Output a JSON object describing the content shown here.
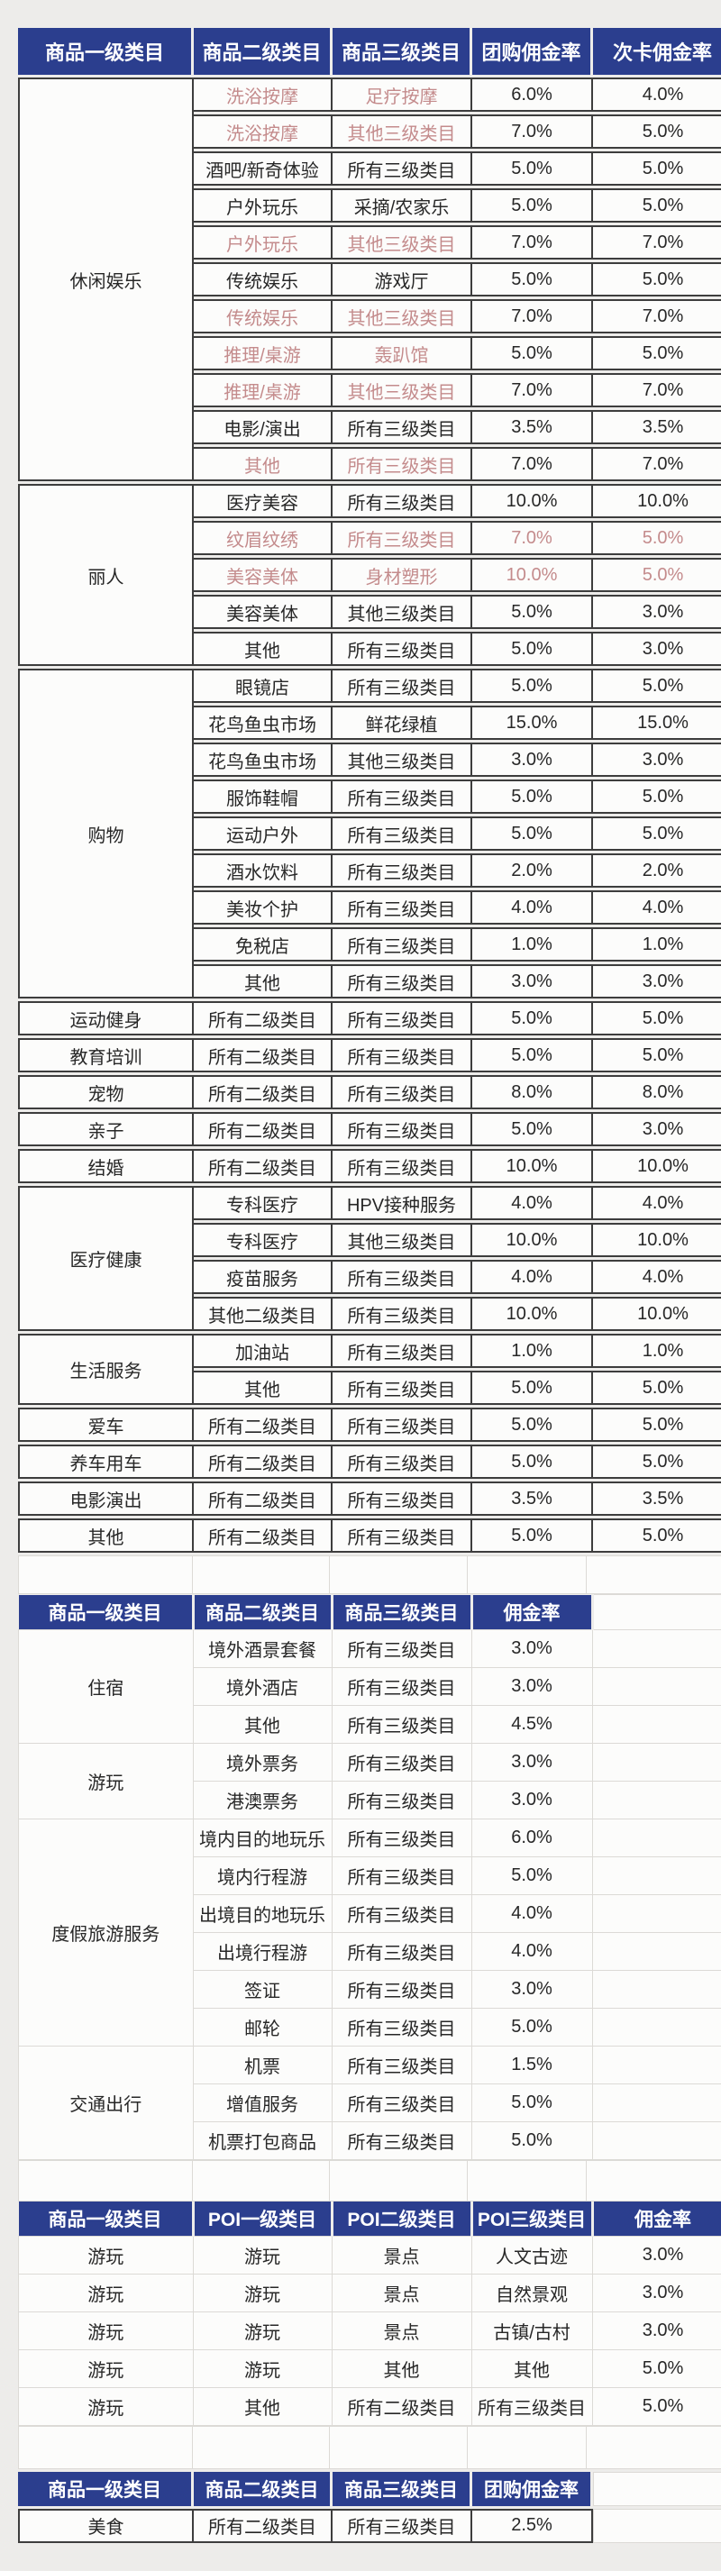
{
  "colors": {
    "page_bg": "#edecea",
    "header_bg": "#2b3e8e",
    "header_text": "#ffffff",
    "cell_bg": "#fcfcfb",
    "dark_border": "#3d3d3d",
    "light_border": "#dcdad6",
    "body_text": "#272727",
    "pink_text": "#c48b8c"
  },
  "blocks": [
    {
      "type": "table",
      "name": "groupbuy-card-commission-table",
      "style": "bordered",
      "tall_header": true,
      "ghost_w": 0,
      "columns": [
        {
          "label": "商品一级类目",
          "w": 188
        },
        {
          "label": "商品二级类目",
          "w": 147
        },
        {
          "label": "商品三级类目",
          "w": 148
        },
        {
          "label": "团购佣金率",
          "w": 127
        },
        {
          "label": "次卡佣金率",
          "w": 150
        }
      ],
      "rows": [
        [
          {
            "t": "休闲娱乐",
            "rs": 11
          },
          {
            "t": "洗浴按摩",
            "pink": true
          },
          {
            "t": "足疗按摩",
            "pink": true
          },
          {
            "t": "6.0%"
          },
          {
            "t": "4.0%"
          }
        ],
        [
          {
            "t": "洗浴按摩",
            "pink": true
          },
          {
            "t": "其他三级类目",
            "pink": true
          },
          {
            "t": "7.0%"
          },
          {
            "t": "5.0%"
          }
        ],
        [
          {
            "t": "酒吧/新奇体验"
          },
          {
            "t": "所有三级类目"
          },
          {
            "t": "5.0%"
          },
          {
            "t": "5.0%"
          }
        ],
        [
          {
            "t": "户外玩乐"
          },
          {
            "t": "采摘/农家乐"
          },
          {
            "t": "5.0%"
          },
          {
            "t": "5.0%"
          }
        ],
        [
          {
            "t": "户外玩乐",
            "pink": true
          },
          {
            "t": "其他三级类目",
            "pink": true
          },
          {
            "t": "7.0%"
          },
          {
            "t": "7.0%"
          }
        ],
        [
          {
            "t": "传统娱乐"
          },
          {
            "t": "游戏厅"
          },
          {
            "t": "5.0%"
          },
          {
            "t": "5.0%"
          }
        ],
        [
          {
            "t": "传统娱乐",
            "pink": true
          },
          {
            "t": "其他三级类目",
            "pink": true
          },
          {
            "t": "7.0%"
          },
          {
            "t": "7.0%"
          }
        ],
        [
          {
            "t": "推理/桌游",
            "pink": true
          },
          {
            "t": "轰趴馆",
            "pink": true
          },
          {
            "t": "5.0%"
          },
          {
            "t": "5.0%"
          }
        ],
        [
          {
            "t": "推理/桌游",
            "pink": true
          },
          {
            "t": "其他三级类目",
            "pink": true
          },
          {
            "t": "7.0%"
          },
          {
            "t": "7.0%"
          }
        ],
        [
          {
            "t": "电影/演出"
          },
          {
            "t": "所有三级类目"
          },
          {
            "t": "3.5%"
          },
          {
            "t": "3.5%"
          }
        ],
        [
          {
            "t": "其他",
            "pink": true
          },
          {
            "t": "所有三级类目",
            "pink": true
          },
          {
            "t": "7.0%"
          },
          {
            "t": "7.0%"
          }
        ],
        [
          {
            "t": "丽人",
            "rs": 5
          },
          {
            "t": "医疗美容"
          },
          {
            "t": "所有三级类目"
          },
          {
            "t": "10.0%"
          },
          {
            "t": "10.0%"
          }
        ],
        [
          {
            "t": "纹眉纹绣",
            "pink": true
          },
          {
            "t": "所有三级类目",
            "pink": true
          },
          {
            "t": "7.0%",
            "pink": true
          },
          {
            "t": "5.0%",
            "pink": true
          }
        ],
        [
          {
            "t": "美容美体",
            "pink": true
          },
          {
            "t": "身材塑形",
            "pink": true
          },
          {
            "t": "10.0%",
            "pink": true
          },
          {
            "t": "5.0%",
            "pink": true
          }
        ],
        [
          {
            "t": "美容美体"
          },
          {
            "t": "其他三级类目"
          },
          {
            "t": "5.0%"
          },
          {
            "t": "3.0%"
          }
        ],
        [
          {
            "t": "其他"
          },
          {
            "t": "所有三级类目"
          },
          {
            "t": "5.0%"
          },
          {
            "t": "3.0%"
          }
        ],
        [
          {
            "t": "购物",
            "rs": 9
          },
          {
            "t": "眼镜店"
          },
          {
            "t": "所有三级类目"
          },
          {
            "t": "5.0%"
          },
          {
            "t": "5.0%"
          }
        ],
        [
          {
            "t": "花鸟鱼虫市场"
          },
          {
            "t": "鲜花绿植"
          },
          {
            "t": "15.0%"
          },
          {
            "t": "15.0%"
          }
        ],
        [
          {
            "t": "花鸟鱼虫市场"
          },
          {
            "t": "其他三级类目"
          },
          {
            "t": "3.0%"
          },
          {
            "t": "3.0%"
          }
        ],
        [
          {
            "t": "服饰鞋帽"
          },
          {
            "t": "所有三级类目"
          },
          {
            "t": "5.0%"
          },
          {
            "t": "5.0%"
          }
        ],
        [
          {
            "t": "运动户外"
          },
          {
            "t": "所有三级类目"
          },
          {
            "t": "5.0%"
          },
          {
            "t": "5.0%"
          }
        ],
        [
          {
            "t": "酒水饮料"
          },
          {
            "t": "所有三级类目"
          },
          {
            "t": "2.0%"
          },
          {
            "t": "2.0%"
          }
        ],
        [
          {
            "t": "美妆个护"
          },
          {
            "t": "所有三级类目"
          },
          {
            "t": "4.0%"
          },
          {
            "t": "4.0%"
          }
        ],
        [
          {
            "t": "免税店"
          },
          {
            "t": "所有三级类目"
          },
          {
            "t": "1.0%"
          },
          {
            "t": "1.0%"
          }
        ],
        [
          {
            "t": "其他"
          },
          {
            "t": "所有三级类目"
          },
          {
            "t": "3.0%"
          },
          {
            "t": "3.0%"
          }
        ],
        [
          {
            "t": "运动健身"
          },
          {
            "t": "所有二级类目"
          },
          {
            "t": "所有三级类目"
          },
          {
            "t": "5.0%"
          },
          {
            "t": "5.0%"
          }
        ],
        [
          {
            "t": "教育培训"
          },
          {
            "t": "所有二级类目"
          },
          {
            "t": "所有三级类目"
          },
          {
            "t": "5.0%"
          },
          {
            "t": "5.0%"
          }
        ],
        [
          {
            "t": "宠物"
          },
          {
            "t": "所有二级类目"
          },
          {
            "t": "所有三级类目"
          },
          {
            "t": "8.0%"
          },
          {
            "t": "8.0%"
          }
        ],
        [
          {
            "t": "亲子"
          },
          {
            "t": "所有二级类目"
          },
          {
            "t": "所有三级类目"
          },
          {
            "t": "5.0%"
          },
          {
            "t": "3.0%"
          }
        ],
        [
          {
            "t": "结婚"
          },
          {
            "t": "所有二级类目"
          },
          {
            "t": "所有三级类目"
          },
          {
            "t": "10.0%"
          },
          {
            "t": "10.0%"
          }
        ],
        [
          {
            "t": "医疗健康",
            "rs": 4
          },
          {
            "t": "专科医疗"
          },
          {
            "t": "HPV接种服务"
          },
          {
            "t": "4.0%"
          },
          {
            "t": "4.0%"
          }
        ],
        [
          {
            "t": "专科医疗"
          },
          {
            "t": "其他三级类目"
          },
          {
            "t": "10.0%"
          },
          {
            "t": "10.0%"
          }
        ],
        [
          {
            "t": "疫苗服务"
          },
          {
            "t": "所有三级类目"
          },
          {
            "t": "4.0%"
          },
          {
            "t": "4.0%"
          }
        ],
        [
          {
            "t": "其他二级类目"
          },
          {
            "t": "所有三级类目"
          },
          {
            "t": "10.0%"
          },
          {
            "t": "10.0%"
          }
        ],
        [
          {
            "t": "生活服务",
            "rs": 2
          },
          {
            "t": "加油站"
          },
          {
            "t": "所有三级类目"
          },
          {
            "t": "1.0%"
          },
          {
            "t": "1.0%"
          }
        ],
        [
          {
            "t": "其他"
          },
          {
            "t": "所有三级类目"
          },
          {
            "t": "5.0%"
          },
          {
            "t": "5.0%"
          }
        ],
        [
          {
            "t": "爱车"
          },
          {
            "t": "所有二级类目"
          },
          {
            "t": "所有三级类目"
          },
          {
            "t": "5.0%"
          },
          {
            "t": "5.0%"
          }
        ],
        [
          {
            "t": "养车用车"
          },
          {
            "t": "所有二级类目"
          },
          {
            "t": "所有三级类目"
          },
          {
            "t": "5.0%"
          },
          {
            "t": "5.0%"
          }
        ],
        [
          {
            "t": "电影演出"
          },
          {
            "t": "所有二级类目"
          },
          {
            "t": "所有三级类目"
          },
          {
            "t": "3.5%"
          },
          {
            "t": "3.5%"
          }
        ],
        [
          {
            "t": "其他"
          },
          {
            "t": "所有二级类目"
          },
          {
            "t": "所有三级类目"
          },
          {
            "t": "5.0%"
          },
          {
            "t": "5.0%"
          }
        ]
      ]
    },
    {
      "type": "spacer",
      "h": 41,
      "cols": [
        188,
        147,
        148,
        127,
        150
      ]
    },
    {
      "type": "table",
      "name": "travel-commission-table",
      "style": "plain",
      "tall_header": false,
      "ghost_w": 150,
      "columns": [
        {
          "label": "商品一级类目",
          "w": 188
        },
        {
          "label": "商品二级类目",
          "w": 147
        },
        {
          "label": "商品三级类目",
          "w": 148
        },
        {
          "label": "佣金率",
          "w": 127
        }
      ],
      "rows": [
        [
          {
            "t": "住宿",
            "rs": 3
          },
          {
            "t": "境外酒景套餐"
          },
          {
            "t": "所有三级类目"
          },
          {
            "t": "3.0%"
          }
        ],
        [
          {
            "t": "境外酒店"
          },
          {
            "t": "所有三级类目"
          },
          {
            "t": "3.0%"
          }
        ],
        [
          {
            "t": "其他"
          },
          {
            "t": "所有三级类目"
          },
          {
            "t": "4.5%"
          }
        ],
        [
          {
            "t": "游玩",
            "rs": 2
          },
          {
            "t": "境外票务"
          },
          {
            "t": "所有三级类目"
          },
          {
            "t": "3.0%"
          }
        ],
        [
          {
            "t": "港澳票务"
          },
          {
            "t": "所有三级类目"
          },
          {
            "t": "3.0%"
          }
        ],
        [
          {
            "t": "度假旅游服务",
            "rs": 6
          },
          {
            "t": "境内目的地玩乐"
          },
          {
            "t": "所有三级类目"
          },
          {
            "t": "6.0%"
          }
        ],
        [
          {
            "t": "境内行程游"
          },
          {
            "t": "所有三级类目"
          },
          {
            "t": "5.0%"
          }
        ],
        [
          {
            "t": "出境目的地玩乐"
          },
          {
            "t": "所有三级类目"
          },
          {
            "t": "4.0%"
          }
        ],
        [
          {
            "t": "出境行程游"
          },
          {
            "t": "所有三级类目"
          },
          {
            "t": "4.0%"
          }
        ],
        [
          {
            "t": "签证"
          },
          {
            "t": "所有三级类目"
          },
          {
            "t": "3.0%"
          }
        ],
        [
          {
            "t": "邮轮"
          },
          {
            "t": "所有三级类目"
          },
          {
            "t": "5.0%"
          }
        ],
        [
          {
            "t": "交通出行",
            "rs": 3
          },
          {
            "t": "机票"
          },
          {
            "t": "所有三级类目"
          },
          {
            "t": "1.5%"
          }
        ],
        [
          {
            "t": "增值服务"
          },
          {
            "t": "所有三级类目"
          },
          {
            "t": "5.0%"
          }
        ],
        [
          {
            "t": "机票打包商品"
          },
          {
            "t": "所有三级类目"
          },
          {
            "t": "5.0%"
          }
        ]
      ]
    },
    {
      "type": "spacer",
      "h": 44,
      "cols": [
        188,
        147,
        148,
        127,
        150
      ]
    },
    {
      "type": "table",
      "name": "poi-commission-table",
      "style": "plain",
      "tall_header": false,
      "ghost_w": 0,
      "columns": [
        {
          "label": "商品一级类目",
          "w": 188
        },
        {
          "label": "POI一级类目",
          "w": 147
        },
        {
          "label": "POI二级类目",
          "w": 148
        },
        {
          "label": "POI三级类目",
          "w": 127
        },
        {
          "label": "佣金率",
          "w": 150
        }
      ],
      "rows": [
        [
          {
            "t": "游玩"
          },
          {
            "t": "游玩"
          },
          {
            "t": "景点"
          },
          {
            "t": "人文古迹"
          },
          {
            "t": "3.0%"
          }
        ],
        [
          {
            "t": "游玩"
          },
          {
            "t": "游玩"
          },
          {
            "t": "景点"
          },
          {
            "t": "自然景观"
          },
          {
            "t": "3.0%"
          }
        ],
        [
          {
            "t": "游玩"
          },
          {
            "t": "游玩"
          },
          {
            "t": "景点"
          },
          {
            "t": "古镇/古村"
          },
          {
            "t": "3.0%"
          }
        ],
        [
          {
            "t": "游玩"
          },
          {
            "t": "游玩"
          },
          {
            "t": "其他"
          },
          {
            "t": "其他"
          },
          {
            "t": "5.0%"
          }
        ],
        [
          {
            "t": "游玩"
          },
          {
            "t": "其他"
          },
          {
            "t": "所有二级类目"
          },
          {
            "t": "所有三级类目"
          },
          {
            "t": "5.0%"
          }
        ]
      ]
    },
    {
      "type": "spacer",
      "h": 46,
      "cols": [
        188,
        147,
        148,
        127,
        150
      ]
    },
    {
      "type": "table",
      "name": "food-commission-table",
      "style": "bordered",
      "tall_header": false,
      "ghost_w": 150,
      "columns": [
        {
          "label": "商品一级类目",
          "w": 188
        },
        {
          "label": "商品二级类目",
          "w": 147
        },
        {
          "label": "商品三级类目",
          "w": 148
        },
        {
          "label": "团购佣金率",
          "w": 127
        }
      ],
      "rows": [
        [
          {
            "t": "美食"
          },
          {
            "t": "所有二级类目"
          },
          {
            "t": "所有三级类目"
          },
          {
            "t": "2.5%"
          }
        ]
      ]
    }
  ]
}
